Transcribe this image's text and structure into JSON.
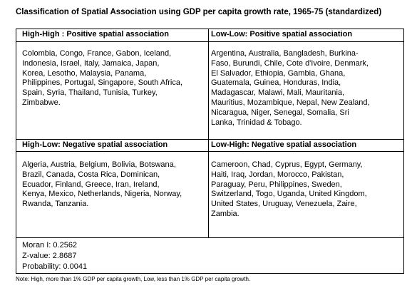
{
  "title": "Classification of Spatial Association using GDP per capita growth rate, 1965-75 (standardized)",
  "table": {
    "cells": [
      {
        "header": "High-High : Positive spatial association",
        "lines": [
          "Colombia, Congo, France, Gabon, Iceland,",
          "Indonesia, Israel, Italy, Jamaica, Japan,",
          "Korea, Lesotho, Malaysia, Panama,",
          "Philippines, Portugal, Singapore, South Africa,",
          "Spain, Syria, Thailand, Tunisia, Turkey,",
          "Zimbabwe."
        ]
      },
      {
        "header": "Low-Low: Positive spatial association",
        "lines": [
          "Argentina, Australia, Bangladesh, Burkina-",
          "Faso, Burundi, Chile, Cote d'Ivoire, Denmark,",
          "El Salvador, Ethiopia, Gambia, Ghana,",
          "Guatemala, Guinea, Honduras, India,",
          "Madagascar, Malawi, Mali, Mauritania,",
          "Mauritius, Mozambique, Nepal, New Zealand,",
          "Nicaragua, Niger, Senegal, Somalia, Sri",
          "Lanka, Trinidad & Tobago."
        ]
      },
      {
        "header": "High-Low: Negative spatial association",
        "lines": [
          "Algeria, Austria, Belgium, Bolivia, Botswana,",
          "Brazil, Canada, Costa Rica, Dominican,",
          "Ecuador, Finland, Greece, Iran, Ireland,",
          "Kenya, Mexico, Netherlands, Nigeria, Norway,",
          "Rwanda, Tanzania."
        ]
      },
      {
        "header": "Low-High: Negative spatial association",
        "lines": [
          "Cameroon, Chad, Cyprus, Egypt, Germany,",
          "Haiti, Iraq, Jordan, Morocco, Pakistan,",
          "Paraguay, Peru, Philippines, Sweden,",
          "Switzerland, Togo, Uganda, United Kingdom,",
          "United States, Uruguay, Venezuela, Zaire,",
          "Zambia."
        ]
      }
    ],
    "statistics": [
      "Moran I: 0.2562",
      "Z-value: 2.8687",
      "Probability: 0.0041"
    ]
  },
  "note": "Note: High, more than 1% GDP per capita growth, Low, less than 1% GDP per capita growth."
}
